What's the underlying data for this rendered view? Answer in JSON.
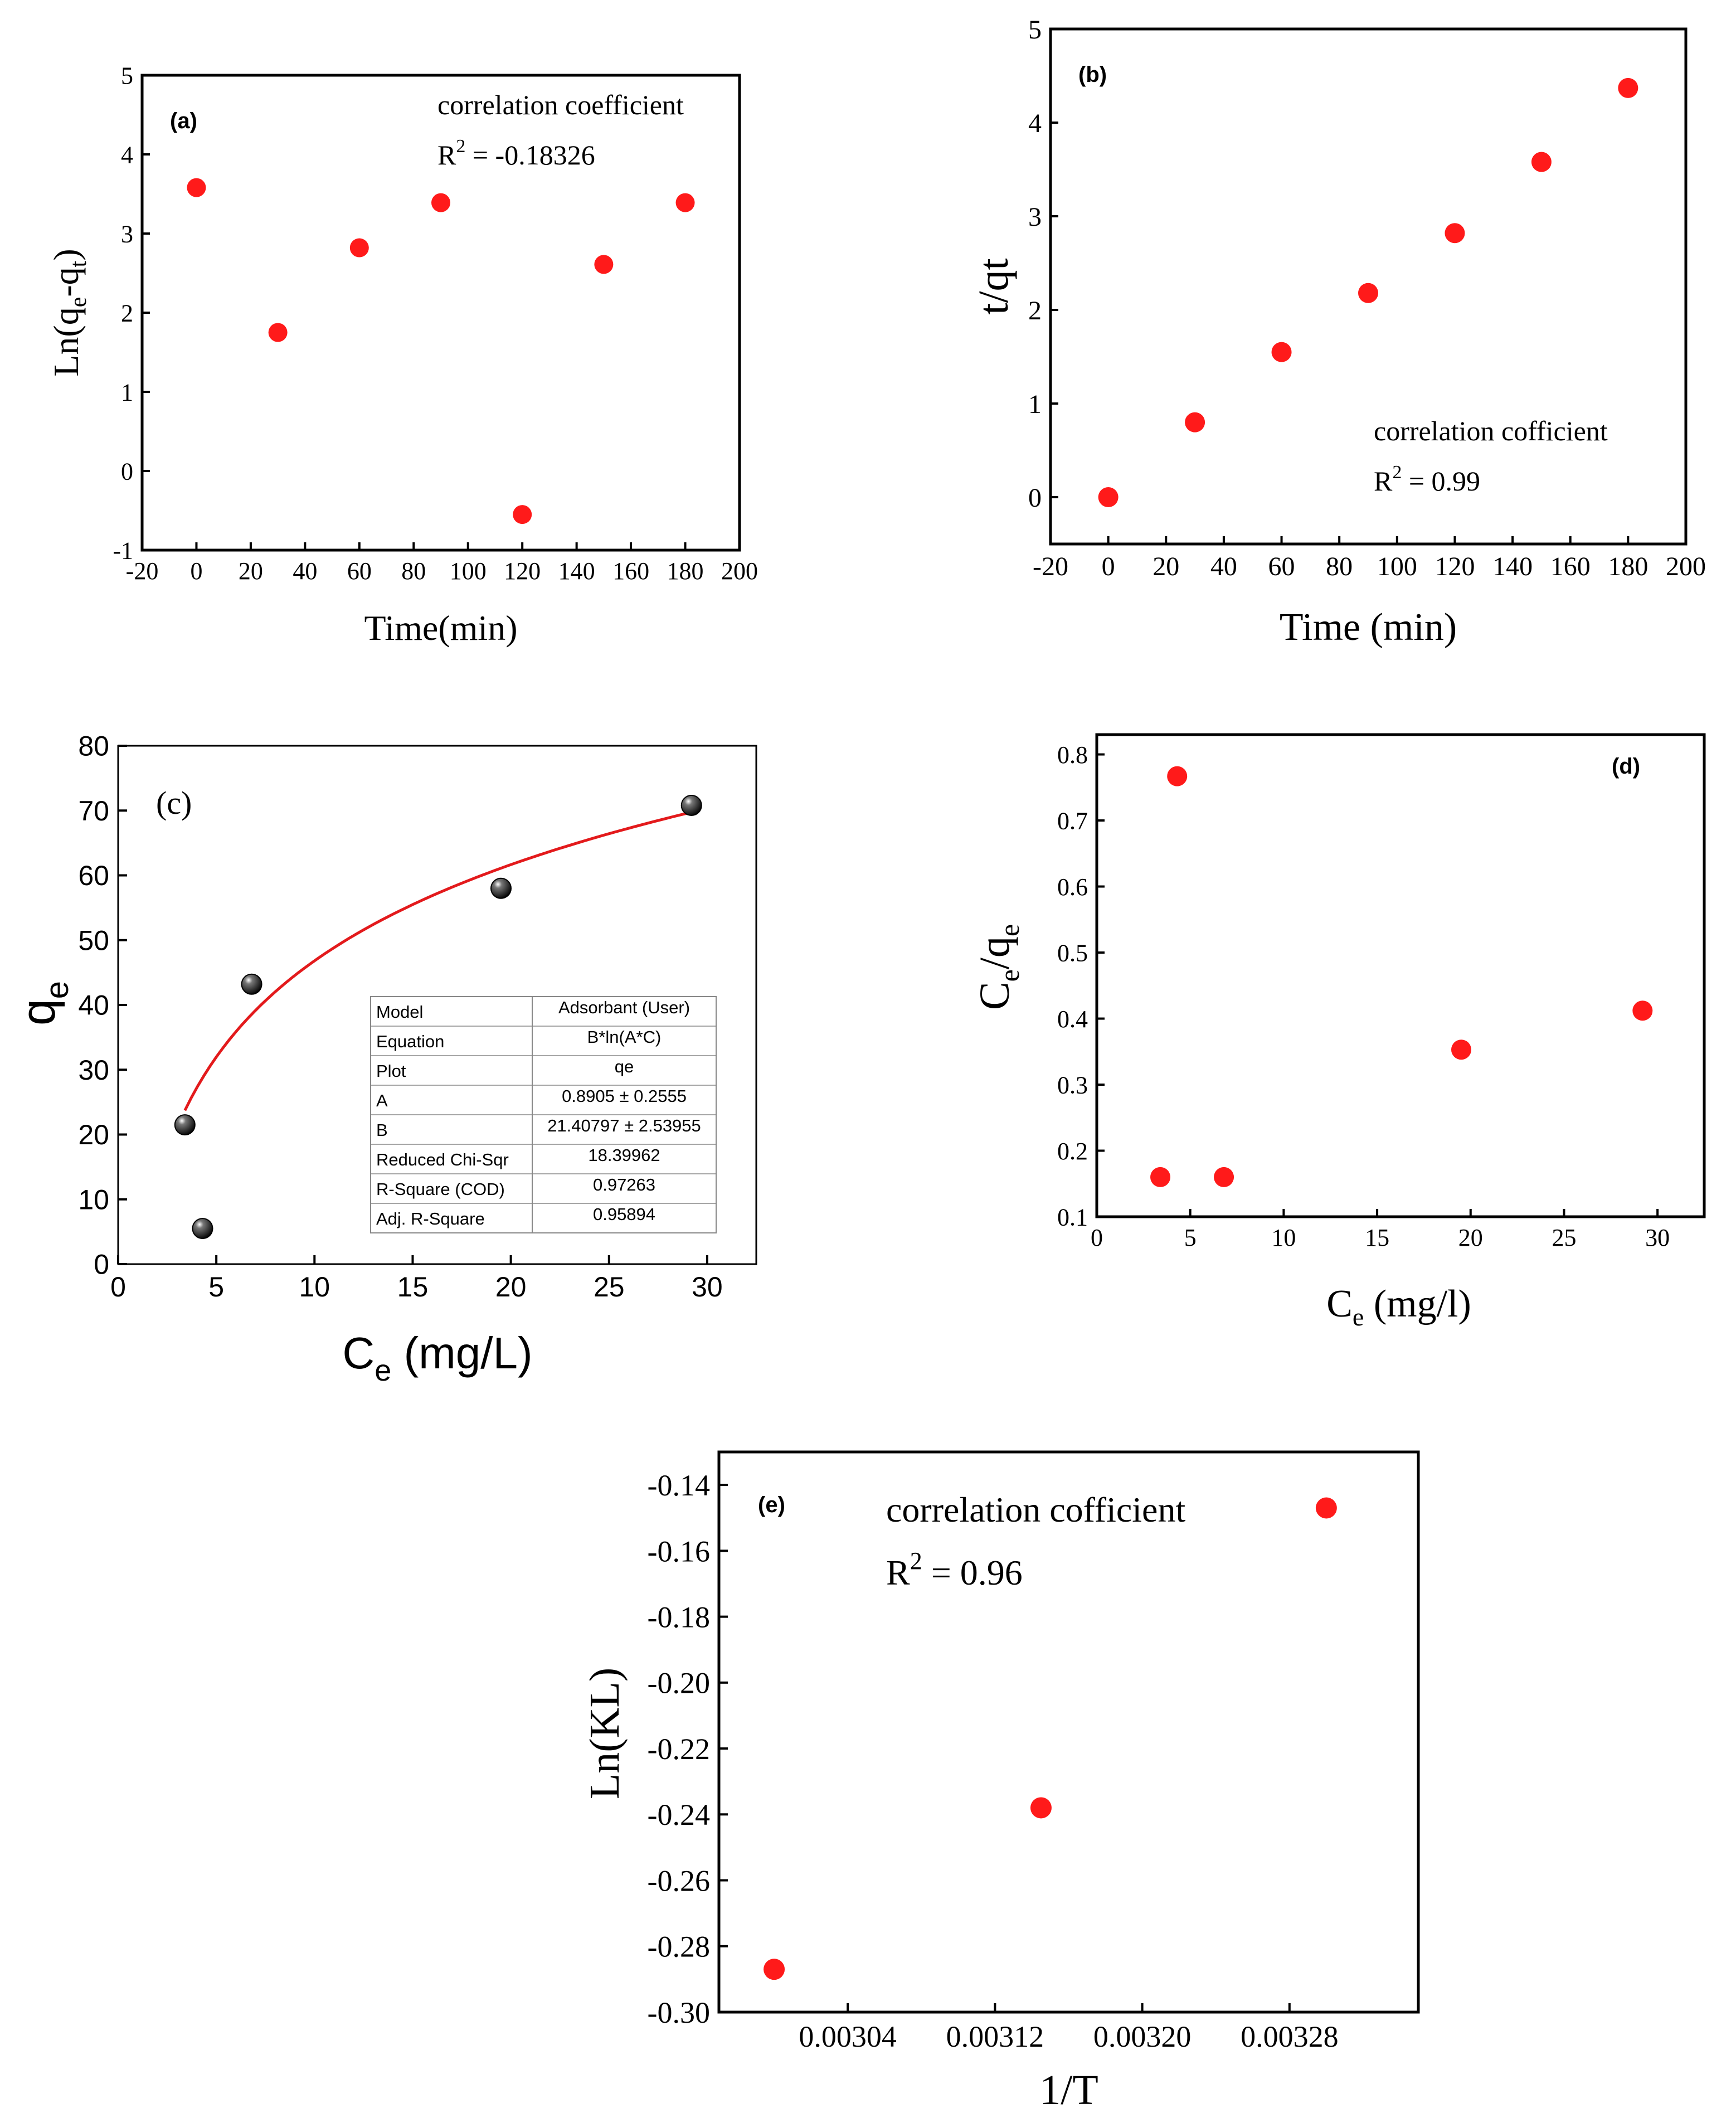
{
  "colors": {
    "marker_red": "#ff1a1a",
    "fit_line": "#e31a1c",
    "axis": "#000000",
    "table_grid": "#888888",
    "ball": "#111111"
  },
  "chart_data": [
    {
      "id": "a",
      "type": "scatter",
      "panel_label": "(a)",
      "xlabel": "Time(min)",
      "ylabel": "Ln(qe-qt)",
      "xlim": [
        -20,
        200
      ],
      "ylim": [
        -1,
        5
      ],
      "xticks": [
        -20,
        0,
        20,
        40,
        60,
        80,
        100,
        120,
        140,
        160,
        180,
        200
      ],
      "xtick_labels": [
        "-20",
        "0",
        "20",
        "40",
        "60",
        "80",
        "100",
        "120",
        "140",
        "160",
        "180",
        "200"
      ],
      "yticks": [
        -1,
        0,
        1,
        2,
        3,
        4,
        5
      ],
      "ytick_labels": [
        "-1",
        "0",
        "1",
        "2",
        "3",
        "4",
        "5"
      ],
      "x": [
        0,
        30,
        60,
        90,
        120,
        150,
        180
      ],
      "y": [
        3.58,
        1.75,
        2.82,
        3.39,
        -0.55,
        2.61,
        3.39
      ],
      "annotation_line1": "correlation coefficient",
      "annotation_r2": "R",
      "annotation_r2_sup": "2",
      "annotation_r2_value": " = -0.18326"
    },
    {
      "id": "b",
      "type": "scatter",
      "panel_label": "(b)",
      "xlabel": "Time (min)",
      "ylabel": "t/qt",
      "xlim": [
        -20,
        200
      ],
      "ylim": [
        -0.5,
        5
      ],
      "xticks": [
        -20,
        0,
        20,
        40,
        60,
        80,
        100,
        120,
        140,
        160,
        180,
        200
      ],
      "xtick_labels": [
        "-20",
        "0",
        "20",
        "40",
        "60",
        "80",
        "100",
        "120",
        "140",
        "160",
        "180",
        "200"
      ],
      "yticks": [
        0,
        1,
        2,
        3,
        4,
        5
      ],
      "ytick_labels": [
        "0",
        "1",
        "2",
        "3",
        "4",
        "5"
      ],
      "x": [
        0,
        30,
        60,
        90,
        120,
        150,
        180
      ],
      "y": [
        0.0,
        0.8,
        1.55,
        2.18,
        2.82,
        3.58,
        4.37
      ],
      "annotation_line1": "correlation cofficient",
      "annotation_r2": "R",
      "annotation_r2_sup": "2",
      "annotation_r2_value": " = 0.99"
    },
    {
      "id": "c",
      "type": "scatter",
      "panel_label": "(c)",
      "xlabel": "Ce (mg/L)",
      "ylabel": "qe",
      "xlim": [
        0,
        32.5
      ],
      "ylim": [
        0,
        80
      ],
      "xticks": [
        0,
        5,
        10,
        15,
        20,
        25,
        30
      ],
      "xtick_labels": [
        "0",
        "5",
        "10",
        "15",
        "20",
        "25",
        "30"
      ],
      "yticks": [
        0,
        10,
        20,
        30,
        40,
        50,
        60,
        70,
        80
      ],
      "ytick_labels": [
        "0",
        "10",
        "20",
        "30",
        "40",
        "50",
        "60",
        "70",
        "80"
      ],
      "x": [
        3.4,
        4.3,
        6.8,
        19.5,
        29.2
      ],
      "y": [
        21.5,
        5.5,
        43.2,
        58.0,
        70.8
      ],
      "fit": {
        "model": "B*ln(A*C)",
        "A": 0.8905,
        "B": 21.40797,
        "x_from": 3.4,
        "x_to": 29.2
      },
      "fit_table": [
        [
          "Model",
          "Adsorbant (User)"
        ],
        [
          "Equation",
          "B*ln(A*C)"
        ],
        [
          "Plot",
          "qe"
        ],
        [
          "A",
          "0.8905 ± 0.2555"
        ],
        [
          "B",
          "21.40797 ± 2.53955"
        ],
        [
          "Reduced Chi-Sqr",
          "18.39962"
        ],
        [
          "R-Square (COD)",
          "0.97263"
        ],
        [
          "Adj. R-Square",
          "0.95894"
        ]
      ]
    },
    {
      "id": "d",
      "type": "scatter",
      "panel_label": "(d)",
      "xlabel": "Ce (mg/l)",
      "ylabel": "Ce/qe",
      "xlim": [
        0,
        32.5
      ],
      "ylim": [
        0.1,
        0.83
      ],
      "xticks": [
        0,
        5,
        10,
        15,
        20,
        25,
        30
      ],
      "xtick_labels": [
        "0",
        "5",
        "10",
        "15",
        "20",
        "25",
        "30"
      ],
      "yticks": [
        0.1,
        0.2,
        0.3,
        0.4,
        0.5,
        0.6,
        0.7,
        0.8
      ],
      "ytick_labels": [
        "0.1",
        "0.2",
        "0.3",
        "0.4",
        "0.5",
        "0.6",
        "0.7",
        "0.8"
      ],
      "x": [
        3.4,
        4.3,
        6.8,
        19.5,
        29.2
      ],
      "y": [
        0.16,
        0.767,
        0.16,
        0.353,
        0.412
      ]
    },
    {
      "id": "e",
      "type": "scatter",
      "panel_label": "(e)",
      "xlabel": "1/T",
      "ylabel": "Ln(KL)",
      "xlim": [
        0.00297,
        0.00335
      ],
      "ylim": [
        -0.3,
        -0.13
      ],
      "xticks": [
        0.00304,
        0.00312,
        0.0032,
        0.00328
      ],
      "xtick_labels": [
        "0.00304",
        "0.00312",
        "0.00320",
        "0.00328"
      ],
      "yticks": [
        -0.3,
        -0.28,
        -0.26,
        -0.24,
        -0.22,
        -0.2,
        -0.18,
        -0.16,
        -0.14
      ],
      "ytick_labels": [
        "-0.30",
        "-0.28",
        "-0.26",
        "-0.24",
        "-0.22",
        "-0.20",
        "-0.18",
        "-0.16",
        "-0.14"
      ],
      "x": [
        0.003,
        0.003145,
        0.0033
      ],
      "y": [
        -0.287,
        -0.238,
        -0.147
      ],
      "annotation_line1": "correlation cofficient",
      "annotation_r2": "R",
      "annotation_r2_sup": "2",
      "annotation_r2_value": " = 0.96"
    }
  ]
}
